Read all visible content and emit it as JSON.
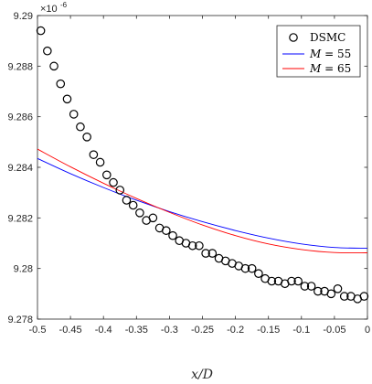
{
  "chart_data": {
    "type": "scatter",
    "title": "",
    "xlabel": "x/D",
    "ylabel": "",
    "xlim": [
      -0.5,
      0
    ],
    "ylim": [
      9.278,
      9.29
    ],
    "y_multiplier": "×10",
    "y_multiplier_exp": "-6",
    "grid": false,
    "legend_position": "top-right",
    "x_ticks": [
      -0.5,
      -0.45,
      -0.4,
      -0.35,
      -0.3,
      -0.25,
      -0.2,
      -0.15,
      -0.1,
      -0.05,
      0
    ],
    "x_tick_labels": [
      "-0.5",
      "-0.45",
      "-0.4",
      "-0.35",
      "-0.3",
      "-0.25",
      "-0.2",
      "-0.15",
      "-0.1",
      "-0.05",
      "0"
    ],
    "y_ticks": [
      9.278,
      9.28,
      9.282,
      9.284,
      9.286,
      9.288,
      9.29
    ],
    "y_tick_labels": [
      "9.278",
      "9.28",
      "9.282",
      "9.284",
      "9.286",
      "9.288",
      "9.29"
    ],
    "legend": {
      "dsmc_label": "DSMC",
      "m55_prefix": "M",
      "m55_value": " = 55",
      "m65_prefix": "M",
      "m65_value": " = 65"
    },
    "series": [
      {
        "name": "DSMC",
        "style": "markers",
        "color": "#000000",
        "x": [
          -0.495,
          -0.485,
          -0.475,
          -0.465,
          -0.455,
          -0.445,
          -0.435,
          -0.425,
          -0.415,
          -0.405,
          -0.395,
          -0.385,
          -0.375,
          -0.365,
          -0.355,
          -0.345,
          -0.335,
          -0.325,
          -0.315,
          -0.305,
          -0.295,
          -0.285,
          -0.275,
          -0.265,
          -0.255,
          -0.245,
          -0.235,
          -0.225,
          -0.215,
          -0.205,
          -0.195,
          -0.185,
          -0.175,
          -0.165,
          -0.155,
          -0.145,
          -0.135,
          -0.125,
          -0.115,
          -0.105,
          -0.095,
          -0.085,
          -0.075,
          -0.065,
          -0.055,
          -0.045,
          -0.035,
          -0.025,
          -0.015,
          -0.005
        ],
        "y": [
          9.2894,
          9.2886,
          9.288,
          9.2873,
          9.2867,
          9.2861,
          9.2856,
          9.2852,
          9.2845,
          9.2842,
          9.2837,
          9.2834,
          9.2831,
          9.2827,
          9.2825,
          9.2822,
          9.2819,
          9.282,
          9.2816,
          9.2815,
          9.2813,
          9.2811,
          9.281,
          9.2809,
          9.2809,
          9.2806,
          9.2806,
          9.2804,
          9.2803,
          9.2802,
          9.2801,
          9.28,
          9.28,
          9.2798,
          9.2796,
          9.2795,
          9.2795,
          9.2794,
          9.2795,
          9.2795,
          9.2793,
          9.2793,
          9.2791,
          9.2791,
          9.279,
          9.2792,
          9.2789,
          9.2789,
          9.2788,
          9.2789
        ]
      },
      {
        "name": "M = 55",
        "style": "line",
        "color": "#0000ff",
        "x": [
          -0.5,
          -0.45,
          -0.4,
          -0.35,
          -0.3,
          -0.25,
          -0.2,
          -0.15,
          -0.1,
          -0.05,
          0
        ],
        "y": [
          9.28435,
          9.28375,
          9.2832,
          9.2827,
          9.28225,
          9.28185,
          9.2815,
          9.2812,
          9.28097,
          9.28083,
          9.2808
        ]
      },
      {
        "name": "M = 65",
        "style": "line",
        "color": "#ff0000",
        "x": [
          -0.5,
          -0.45,
          -0.4,
          -0.35,
          -0.3,
          -0.25,
          -0.2,
          -0.15,
          -0.1,
          -0.05,
          0
        ],
        "y": [
          9.28472,
          9.28402,
          9.28337,
          9.28277,
          9.28222,
          9.28172,
          9.2813,
          9.28097,
          9.28075,
          9.28063,
          9.28062
        ]
      }
    ]
  }
}
